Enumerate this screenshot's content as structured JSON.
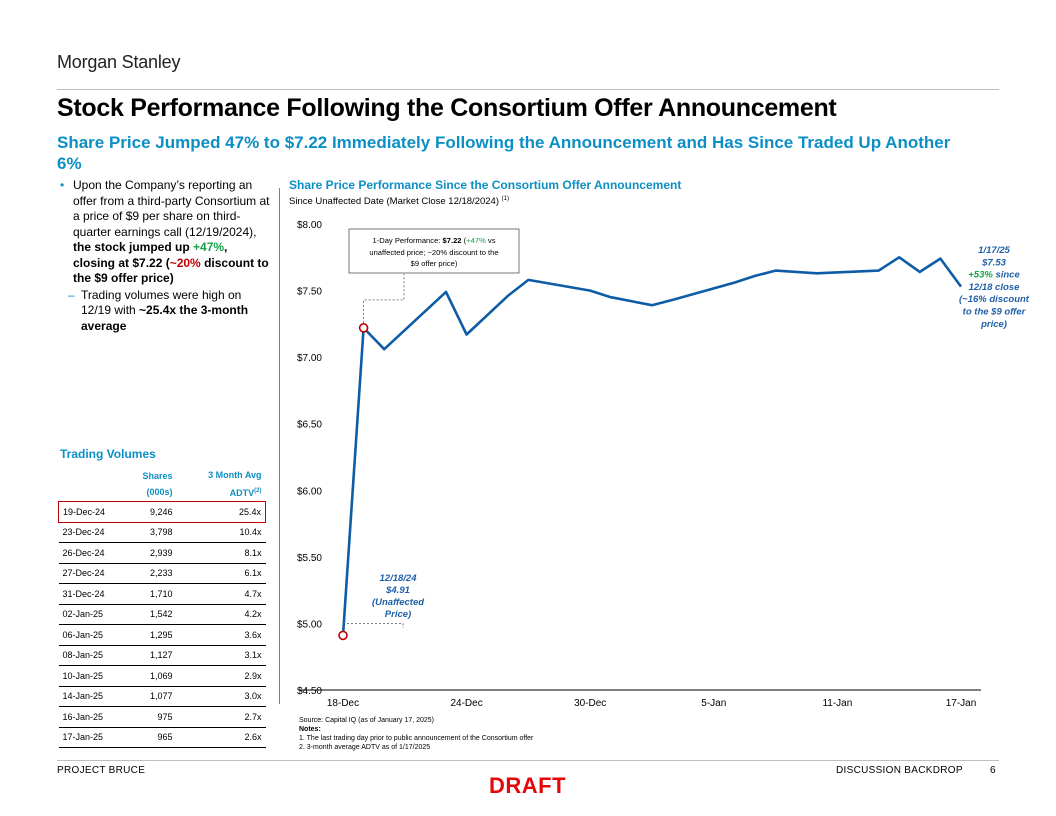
{
  "brand": "Morgan Stanley",
  "title": "Stock Performance Following the Consortium Offer Announcement",
  "subtitle": "Share Price Jumped 47% to $7.22 Immediately Following the Announcement and Has Since Traded Up Another 6%",
  "bullets": {
    "b1_text1": "Upon the Company’s reporting an offer from a third-party Consortium at a price of $9 per share on third-quarter earnings call (12/19/2024), ",
    "b1_bold1": "the stock jumped up ",
    "b1_pct": "+47%",
    "b1_bold2": ", closing at $7.22 (",
    "b1_disc": "~20%",
    "b1_bold3": " discount to the $9 offer price)",
    "b2_text": "Trading volumes were high on 12/19 with ",
    "b2_bold": "~25.4x the 3-month average"
  },
  "trading_volumes": {
    "title": "Trading Volumes",
    "col_shares": "Shares",
    "col_shares_unit": "(000s)",
    "col_adtv": "3 Month Avg",
    "col_adtv_unit": "ADTV",
    "col_adtv_note": "(2)",
    "rows": [
      {
        "date": "19-Dec-24",
        "shares": "9,246",
        "adtv": "25.4x",
        "highlight": true
      },
      {
        "date": "23-Dec-24",
        "shares": "3,798",
        "adtv": "10.4x"
      },
      {
        "date": "26-Dec-24",
        "shares": "2,939",
        "adtv": "8.1x"
      },
      {
        "date": "27-Dec-24",
        "shares": "2,233",
        "adtv": "6.1x"
      },
      {
        "date": "31-Dec-24",
        "shares": "1,710",
        "adtv": "4.7x"
      },
      {
        "date": "02-Jan-25",
        "shares": "1,542",
        "adtv": "4.2x"
      },
      {
        "date": "06-Jan-25",
        "shares": "1,295",
        "adtv": "3.6x"
      },
      {
        "date": "08-Jan-25",
        "shares": "1,127",
        "adtv": "3.1x"
      },
      {
        "date": "10-Jan-25",
        "shares": "1,069",
        "adtv": "2.9x"
      },
      {
        "date": "14-Jan-25",
        "shares": "1,077",
        "adtv": "3.0x"
      },
      {
        "date": "16-Jan-25",
        "shares": "975",
        "adtv": "2.7x"
      },
      {
        "date": "17-Jan-25",
        "shares": "965",
        "adtv": "2.6x"
      }
    ]
  },
  "chart_title": "Share Price Performance Since the Consortium Offer Announcement",
  "chart_subtitle": "Since Unaffected Date (Market Close 12/18/2024)",
  "chart_subtitle_note": "(1)",
  "chart_data": {
    "type": "line",
    "x": [
      "18-Dec",
      "19-Dec",
      "20-Dec",
      "23-Dec",
      "24-Dec",
      "26-Dec",
      "27-Dec",
      "30-Dec",
      "31-Dec",
      "2-Jan",
      "3-Jan",
      "6-Jan",
      "7-Jan",
      "8-Jan",
      "10-Jan",
      "13-Jan",
      "14-Jan",
      "15-Jan",
      "16-Jan",
      "17-Jan"
    ],
    "series": [
      {
        "values": [
          4.91,
          7.22,
          7.06,
          7.49,
          7.17,
          7.46,
          7.58,
          7.5,
          7.45,
          7.39,
          7.43,
          7.56,
          7.61,
          7.65,
          7.63,
          7.65,
          7.75,
          7.64,
          7.74,
          7.53
        ],
        "color": "#0f5ca6"
      }
    ],
    "xticks": [
      "18-Dec",
      "24-Dec",
      "30-Dec",
      "5-Jan",
      "11-Jan",
      "17-Jan"
    ],
    "yticks": [
      "$4.50",
      "$5.00",
      "$5.50",
      "$6.00",
      "$6.50",
      "$7.00",
      "$7.50",
      "$8.00"
    ],
    "ylim": [
      4.5,
      8.0
    ],
    "grid": false,
    "markers": [
      {
        "index": 0,
        "color": "#c00000"
      },
      {
        "index": 1,
        "color": "#c00000"
      }
    ],
    "annotations": {
      "start": [
        "12/18/24",
        "$4.91",
        "(Unaffected",
        "Price)"
      ],
      "callout": {
        "prefix": "1-Day Performance: ",
        "price": "$7.22",
        "open": " (",
        "pct": "+47%",
        "rest1": " vs",
        "line2": "unaffected price; ~20% discount to the",
        "line3": "$9 offer price)"
      },
      "end": {
        "l1": "1/17/25",
        "l2": "$7.53",
        "l3_pct": "+53%",
        "l3_rest": " since",
        "l4": "12/18 close",
        "l5": "(~16% discount",
        "l6": "to the $9 offer",
        "l7": "price)"
      }
    }
  },
  "footer": {
    "source": "Source: Capital IQ (as of January 17, 2025)",
    "notes_label": "Notes:",
    "note1": "1.   The last trading day prior to public announcement of the Consortium offer",
    "note2": "2.   3-month average ADTV as of 1/17/2025",
    "left": "PROJECT BRUCE",
    "right": "DISCUSSION BACKDROP",
    "page": "6",
    "draft": "DRAFT"
  },
  "colors": {
    "accent": "#0c8fc4",
    "line": "#0f5ca6",
    "positive": "#18a04a",
    "negative": "#c00000",
    "draft": "#e4080a"
  }
}
